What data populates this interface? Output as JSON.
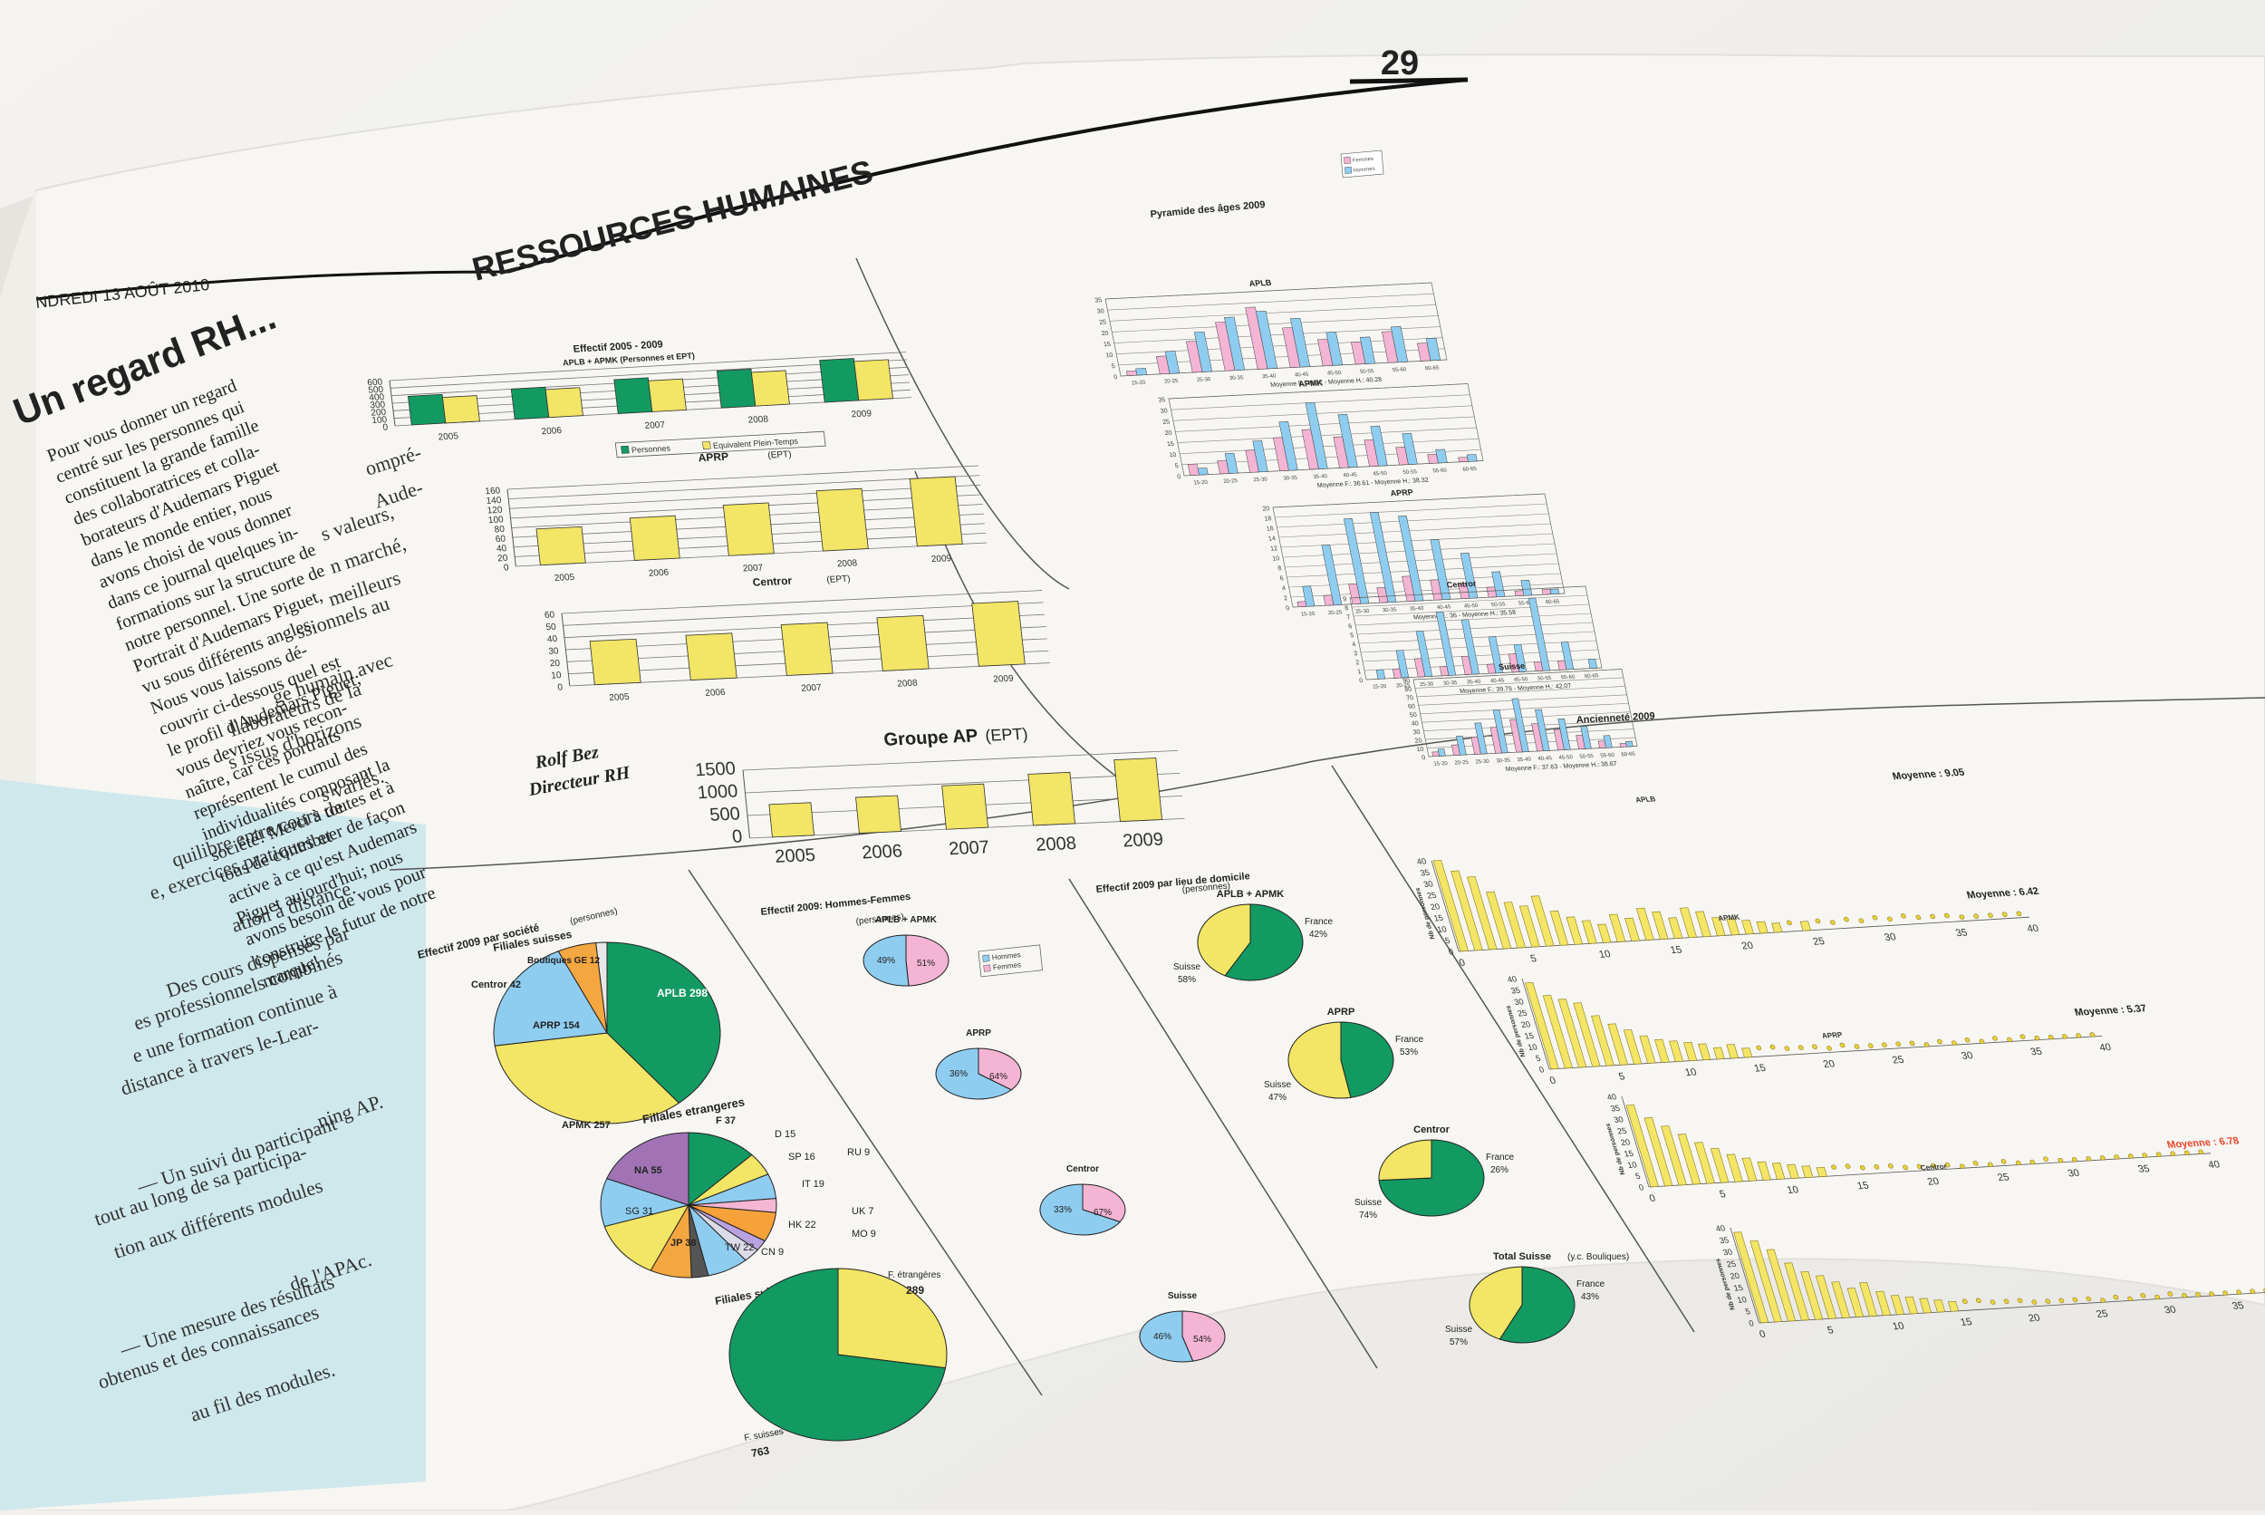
{
  "page": {
    "number": "29",
    "section_title": "RESSOURCES HUMAINES",
    "date_line": "NDREDI 13 AOÛT 2010"
  },
  "article": {
    "title": "Un regard RH...",
    "lines": [
      "Pour vous donner un regard",
      "centré sur les personnes qui",
      "constituent la grande famille",
      "des collaboratrices et colla-",
      "borateurs d'Audemars Piguet",
      "dans le monde entier, nous",
      "avons choisi de vous donner",
      "dans ce journal quelques in-",
      "formations sur la structure de",
      "notre personnel. Une sorte de",
      "Portrait d'Audemars Piguet,",
      "vu sous différents angles.",
      "Nous vous laissons dé-",
      "couvrir ci-dessous quel est",
      "le profil d'Audemars Piguet;",
      "vous devriez vous recon-",
      "naître, car ces portraits",
      "représentent le cumul des",
      "individualités composant la",
      "société! Merci à toutes et à",
      "tous de contribuer de façon",
      "active à ce qu'est Audemars",
      "Piguet aujourd'hui; nous",
      "avons besoin de vous pour",
      "construire le futur de notre",
      "marque!"
    ],
    "author": "Rolf Bez",
    "author_role": "Directeur RH"
  },
  "left_page_lines": [
    "ompré-",
    "Aude-",
    "s valeurs,",
    "n marché,",
    "meilleurs",
    "ssionnels au",
    "",
    "ge humain avec",
    "llaborateurs de la",
    "s issus d'horizons",
    "s variés.",
    "",
    "quilibre entre cours de",
    "e, exercices pratiques et",
    "ation à distance.",
    "",
    "Des cours dispensés par",
    "es professionnels combinés",
    "e une formation continue à",
    "distance à travers le-Lear-",
    "ning AP.",
    "",
    "— Un suivi du participant",
    "tout au long de sa participa-",
    "tion aux différents modules",
    "de l'APAc.",
    "",
    "— Une mesure des résultats",
    "obtenus et des connaissances",
    "au fil des modules."
  ],
  "colors": {
    "green": "#129a62",
    "yellow": "#f3e565",
    "pink": "#f4b4d4",
    "blue": "#8ecdf0",
    "purple": "#a173b4",
    "orange": "#f4a640",
    "red_text": "#e8452c",
    "paper": "#f7f6f2",
    "left_box": "#cfe8ec"
  },
  "chart_data": [
    {
      "type": "bar",
      "title": "Effectif 2005 - 2009",
      "subtitle": "APLB + APMK (Personnes et EPT)",
      "categories": [
        "2005",
        "2006",
        "2007",
        "2008",
        "2009"
      ],
      "series": [
        {
          "name": "Personnes",
          "values": [
            380,
            400,
            450,
            490,
            555
          ]
        },
        {
          "name": "Equivalent Plein-Temps",
          "values": [
            340,
            370,
            410,
            445,
            515
          ]
        }
      ],
      "yticks": [
        "0",
        "100",
        "200",
        "300",
        "400",
        "500",
        "600"
      ],
      "ylim": [
        0,
        600
      ]
    },
    {
      "type": "bar",
      "title": "APRP",
      "subtitle": "(EPT)",
      "categories": [
        "2005",
        "2006",
        "2007",
        "2008",
        "2009"
      ],
      "values": [
        75,
        88,
        105,
        125,
        140
      ],
      "yticks": [
        "0",
        "20",
        "40",
        "60",
        "80",
        "100",
        "120",
        "140",
        "160"
      ],
      "ylim": [
        0,
        160
      ]
    },
    {
      "type": "bar",
      "title": "Centror",
      "subtitle": "(EPT)",
      "categories": [
        "2005",
        "2006",
        "2007",
        "2008",
        "2009"
      ],
      "values": [
        36,
        37,
        42,
        44,
        52
      ],
      "yticks": [
        "0",
        "10",
        "20",
        "30",
        "40",
        "50",
        "60"
      ],
      "ylim": [
        0,
        60
      ]
    },
    {
      "type": "bar",
      "title": "Groupe AP",
      "subtitle": "(EPT)",
      "categories": [
        "2005",
        "2006",
        "2007",
        "2008",
        "2009"
      ],
      "values": [
        720,
        790,
        960,
        1130,
        1360
      ],
      "yticks": [
        "0",
        "500",
        "1000",
        "1500"
      ],
      "ylim": [
        0,
        1500
      ]
    },
    {
      "type": "bar",
      "title": "Pyramide des âges 2009",
      "legend": [
        "Femmes",
        "Hommes"
      ],
      "categories": [
        "15-20",
        "20-25",
        "25-30",
        "30-35",
        "35-40",
        "40-45",
        "45-50",
        "50-55",
        "55-60",
        "60-65"
      ],
      "panels": [
        {
          "name": "APLB",
          "yticks": [
            "0",
            "5",
            "10",
            "15",
            "20",
            "25",
            "30",
            "35"
          ],
          "ymax": 35,
          "female": [
            2,
            8,
            14,
            22,
            28,
            18,
            12,
            10,
            14,
            8
          ],
          "male": [
            3,
            10,
            18,
            24,
            26,
            22,
            15,
            12,
            16,
            10
          ],
          "moyenne": "Moyenne F.: 38.32 - Moyenne H.: 40.28"
        },
        {
          "name": "APMK",
          "yticks": [
            "0",
            "5",
            "10",
            "15",
            "20",
            "25",
            "30",
            "35"
          ],
          "ymax": 35,
          "female": [
            5,
            6,
            10,
            15,
            18,
            14,
            12,
            8,
            4,
            2
          ],
          "male": [
            3,
            9,
            14,
            22,
            30,
            24,
            18,
            14,
            6,
            3
          ],
          "moyenne": "Moyenne F.: 36.61 - Moyenne H.: 38.32"
        },
        {
          "name": "APRP",
          "yticks": [
            "0",
            "2",
            "4",
            "6",
            "8",
            "10",
            "12",
            "14",
            "16",
            "18",
            "20"
          ],
          "ymax": 20,
          "female": [
            1,
            2,
            4,
            3,
            5,
            4,
            3,
            2,
            1,
            1
          ],
          "male": [
            4,
            12,
            17,
            18,
            17,
            12,
            9,
            5,
            3,
            1
          ],
          "moyenne": "Moyenne F.: 36 - Moyenne H.: 35.58"
        },
        {
          "name": "Centror",
          "yticks": [
            "0",
            "1",
            "2",
            "3",
            "4",
            "5",
            "6",
            "7",
            "8",
            "9"
          ],
          "ymax": 9,
          "female": [
            0,
            1,
            2,
            1,
            2,
            1,
            2,
            1,
            1,
            0
          ],
          "male": [
            1,
            3,
            5,
            7,
            6,
            4,
            3,
            8,
            3,
            1
          ],
          "moyenne": "Moyenne F.: 39.79 - Moyenne H.: 42.07"
        },
        {
          "name": "Suisse",
          "yticks": [
            "0",
            "10",
            "20",
            "30",
            "40",
            "50",
            "60",
            "70",
            "80",
            "90"
          ],
          "ymax": 90,
          "female": [
            5,
            12,
            20,
            30,
            38,
            32,
            24,
            16,
            8,
            4
          ],
          "male": [
            8,
            22,
            36,
            50,
            62,
            48,
            36,
            26,
            14,
            6
          ],
          "moyenne": "Moyenne F.: 37.63 - Moyenne H.: 38.67"
        }
      ]
    },
    {
      "type": "bar",
      "title": "Ancienneté 2009",
      "panels": [
        {
          "name": "APLB",
          "moyenne": "Moyenne : 9.05",
          "ylabel": "Nb de personnes",
          "counts": [
            40,
            35,
            32,
            25,
            20,
            18,
            22,
            15,
            12,
            10,
            8,
            12,
            10,
            14,
            12,
            9,
            13,
            11,
            8,
            7,
            6,
            5,
            4,
            3,
            4,
            3,
            2,
            3,
            2,
            3,
            2,
            3,
            2,
            2,
            2,
            1,
            1,
            1,
            1,
            1
          ]
        },
        {
          "name": "APMK",
          "moyenne": "Moyenne : 6.42",
          "ylabel": "Nb de personnes",
          "counts": [
            38,
            32,
            30,
            28,
            22,
            18,
            15,
            12,
            10,
            9,
            8,
            7,
            5,
            6,
            4,
            3,
            3,
            2,
            2,
            2,
            1,
            2,
            1,
            1,
            1,
            1,
            1,
            0,
            1,
            0,
            1,
            0,
            1,
            0,
            1,
            0,
            0,
            0,
            0,
            0
          ]
        },
        {
          "name": "APRP",
          "moyenne": "Moyenne : 5.37",
          "ylabel": "Nb de personnes",
          "counts": [
            36,
            30,
            26,
            22,
            18,
            15,
            12,
            10,
            8,
            7,
            6,
            5,
            4,
            3,
            3,
            2,
            2,
            2,
            1,
            1,
            1,
            1,
            0,
            1,
            0,
            1,
            0,
            0,
            1,
            0,
            0,
            0,
            0,
            0,
            0,
            0,
            0,
            0,
            0,
            0
          ]
        },
        {
          "name": "Centror",
          "moyenne": "Moyenne : 6.78",
          "ylabel": "Nb de personnes",
          "counts": [
            38,
            34,
            30,
            24,
            20,
            18,
            15,
            12,
            14,
            10,
            8,
            7,
            6,
            5,
            4,
            3,
            3,
            2,
            2,
            2,
            1,
            1,
            1,
            1,
            1,
            0,
            1,
            0,
            1,
            0,
            1,
            0,
            0,
            0,
            0,
            0,
            0,
            0,
            0,
            0
          ]
        }
      ],
      "yticks": [
        "0",
        "5",
        "10",
        "15",
        "20",
        "25",
        "30",
        "35",
        "40"
      ],
      "xticks": [
        "0",
        "5",
        "10",
        "15",
        "20",
        "25",
        "30",
        "35",
        "40"
      ]
    },
    {
      "type": "pie",
      "title": "Effectif 2009 par société",
      "title_unit": "(personnes)",
      "groups": [
        {
          "name": "Filiales suisses",
          "slices": [
            {
              "label": "APLB",
              "value": 298
            },
            {
              "label": "APMK",
              "value": 257
            },
            {
              "label": "APRP",
              "value": 154
            },
            {
              "label": "Centror",
              "value": 42
            },
            {
              "label": "Boutiques GE",
              "value": 12
            }
          ]
        },
        {
          "name": "Filiales etrangeres",
          "slices": [
            {
              "label": "F",
              "value": 37
            },
            {
              "label": "D",
              "value": 15
            },
            {
              "label": "SP",
              "value": 16
            },
            {
              "label": "RU",
              "value": 9
            },
            {
              "label": "IT",
              "value": 19
            },
            {
              "label": "UK",
              "value": 7
            },
            {
              "label": "MO",
              "value": 9
            },
            {
              "label": "HK",
              "value": 22
            },
            {
              "label": "CN",
              "value": 9
            },
            {
              "label": "TW",
              "value": 22
            },
            {
              "label": "JP",
              "value": 38
            },
            {
              "label": "SG",
              "value": 31
            },
            {
              "label": "NA",
              "value": 55
            }
          ]
        },
        {
          "name": "Filiales suisses/étrangères",
          "slices": [
            {
              "label": "F. suisses",
              "value": 763
            },
            {
              "label": "F. étrangères",
              "value": 289
            }
          ]
        }
      ]
    },
    {
      "type": "pie",
      "title": "Effectif 2009: Hommes-Femmes",
      "title_unit": "(personnes)",
      "legend": [
        "Hommes",
        "Femmes"
      ],
      "groups": [
        {
          "name": "APLB + APMK",
          "slices": [
            {
              "label": "Femmes",
              "value": 49
            },
            {
              "label": "Hommes",
              "value": 51
            }
          ]
        },
        {
          "name": "APRP",
          "slices": [
            {
              "label": "Femmes",
              "value": 36
            },
            {
              "label": "Hommes",
              "value": 64
            }
          ]
        },
        {
          "name": "Centror",
          "slices": [
            {
              "label": "Femmes",
              "value": 33
            },
            {
              "label": "Hommes",
              "value": 67
            }
          ]
        },
        {
          "name": "Suisse",
          "slices": [
            {
              "label": "Femmes",
              "value": 46
            },
            {
              "label": "Hommes",
              "value": 54
            }
          ]
        }
      ]
    },
    {
      "type": "pie",
      "title": "Effectif 2009 par lieu de domicile",
      "title_unit": "(personnes)",
      "groups": [
        {
          "name": "APLB + APMK",
          "slices": [
            {
              "label": "Suisse",
              "value": 58
            },
            {
              "label": "France",
              "value": 42
            }
          ]
        },
        {
          "name": "APRP",
          "slices": [
            {
              "label": "Suisse",
              "value": 47
            },
            {
              "label": "France",
              "value": 53
            }
          ]
        },
        {
          "name": "Centror",
          "slices": [
            {
              "label": "Suisse",
              "value": 74
            },
            {
              "label": "France",
              "value": 26
            }
          ]
        },
        {
          "name": "Total Suisse",
          "name_note": "(y.c. Bouliques)",
          "slices": [
            {
              "label": "Suisse",
              "value": 57
            },
            {
              "label": "France",
              "value": 43
            }
          ]
        }
      ]
    }
  ]
}
